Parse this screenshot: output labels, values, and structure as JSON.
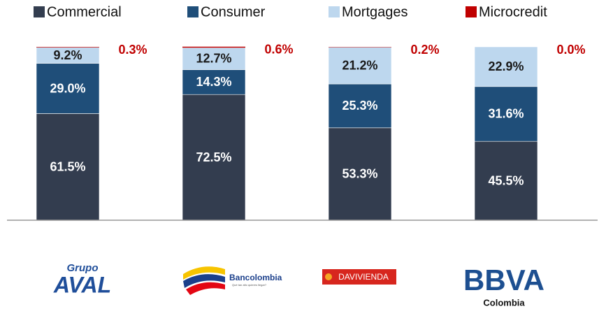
{
  "chart_data": {
    "type": "stacked_bar",
    "series": [
      {
        "name": "Commercial",
        "color": "#333d4f",
        "label_color": "#ffffff",
        "values": [
          61.5,
          72.5,
          53.3,
          45.5
        ],
        "value_labels": [
          "61.5%",
          "72.5%",
          "53.3%",
          "45.5%"
        ]
      },
      {
        "name": "Consumer",
        "color": "#1f4e79",
        "label_color": "#ffffff",
        "values": [
          29.0,
          14.3,
          25.3,
          31.6
        ],
        "value_labels": [
          "29.0%",
          "14.3%",
          "25.3%",
          "31.6%"
        ]
      },
      {
        "name": "Mortgages",
        "color": "#bdd7ee",
        "label_color": "#1a1a1a",
        "values": [
          9.2,
          12.7,
          21.2,
          22.9
        ],
        "value_labels": [
          "9.2%",
          "12.7%",
          "21.2%",
          "22.9%"
        ]
      },
      {
        "name": "Microcredit",
        "color": "#c00000",
        "label_color": "#c00000",
        "values": [
          0.3,
          0.6,
          0.2,
          0.0
        ],
        "value_labels": [
          "0.3%",
          "0.6%",
          "0.2%",
          "0.0%"
        ]
      }
    ],
    "ylim": [
      0,
      100
    ]
  },
  "logos": [
    {
      "lines": [
        "Grupo",
        "AVAL"
      ]
    },
    {
      "lines": [
        "Bancolombia",
        "Qué tan alto quieres llegar?"
      ]
    },
    {
      "lines": [
        "DAVIVIENDA"
      ]
    },
    {
      "lines": [
        "BBVA",
        "Colombia"
      ]
    }
  ]
}
